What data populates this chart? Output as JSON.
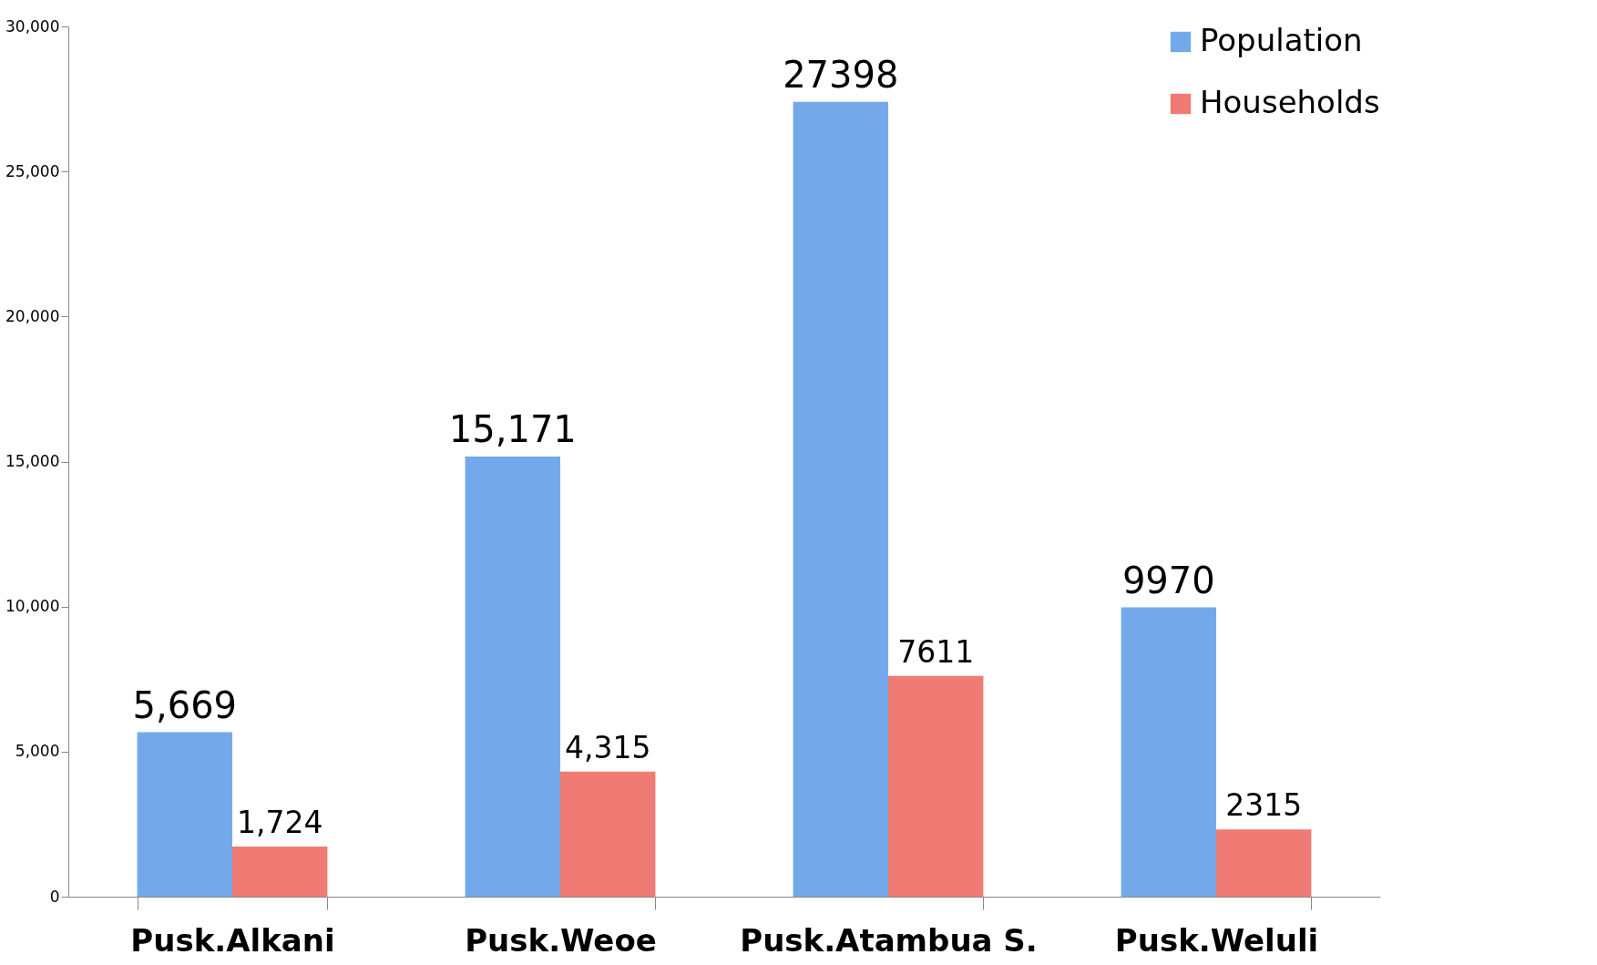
{
  "chart_data": {
    "type": "bar",
    "categories": [
      "Pusk.Alkani",
      "Pusk.Weoe",
      "Pusk.Atambua S.",
      "Pusk.Weluli"
    ],
    "series": [
      {
        "name": "Population",
        "color": "#73a9ea",
        "values": [
          5669,
          15171,
          27398,
          9970
        ],
        "value_labels": [
          "5,669",
          "15,171",
          "27398",
          "9970"
        ]
      },
      {
        "name": "Households",
        "color": "#ef7b74",
        "values": [
          1724,
          4315,
          7611,
          2315
        ],
        "value_labels": [
          "1,724",
          "4,315",
          "7611",
          "2315"
        ]
      }
    ],
    "ylim": [
      0,
      30000
    ],
    "yticks": [
      {
        "value": 0,
        "label": "0"
      },
      {
        "value": 5000,
        "label": "5,000"
      },
      {
        "value": 10000,
        "label": "10,000"
      },
      {
        "value": 15000,
        "label": "15,000"
      },
      {
        "value": 20000,
        "label": "20,000"
      },
      {
        "value": 25000,
        "label": "25,000"
      },
      {
        "value": 30000,
        "label": "30,000"
      }
    ],
    "grid": false,
    "legend": "top right"
  }
}
